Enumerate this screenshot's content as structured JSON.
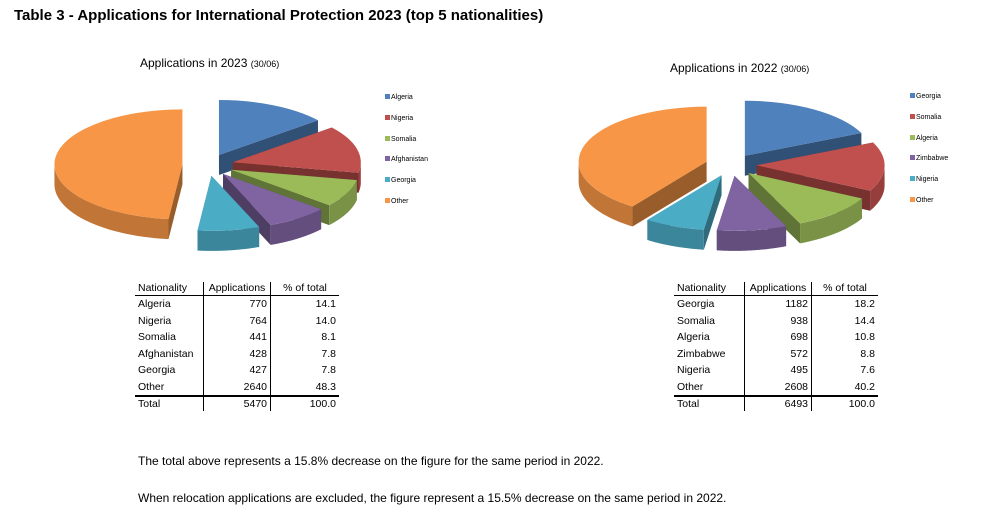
{
  "heading": "Table 3 - Applications for International Protection 2023 (top 5 nationalities)",
  "charts": [
    {
      "title": "Applications in 2023",
      "subtitle": "(30/06)",
      "legend": [
        {
          "label": "Algeria",
          "color": "#4f81bd"
        },
        {
          "label": "Nigeria",
          "color": "#c0504d"
        },
        {
          "label": "Somalia",
          "color": "#9bbb59"
        },
        {
          "label": "Afghanistan",
          "color": "#8064a2"
        },
        {
          "label": "Georgia",
          "color": "#4bacc6"
        },
        {
          "label": "Other",
          "color": "#f79646"
        }
      ],
      "table": {
        "headers": [
          "Nationality",
          "Applications",
          "% of total"
        ],
        "rows": [
          [
            "Algeria",
            "770",
            "14.1"
          ],
          [
            "Nigeria",
            "764",
            "14.0"
          ],
          [
            "Somalia",
            "441",
            "8.1"
          ],
          [
            "Afghanistan",
            "428",
            "7.8"
          ],
          [
            "Georgia",
            "427",
            "7.8"
          ],
          [
            "Other",
            "2640",
            "48.3"
          ]
        ],
        "total": [
          "Total",
          "5470",
          "100.0"
        ]
      }
    },
    {
      "title": "Applications in 2022",
      "subtitle": "(30/06)",
      "legend": [
        {
          "label": "Georgia",
          "color": "#4f81bd"
        },
        {
          "label": "Somalia",
          "color": "#c0504d"
        },
        {
          "label": "Algeria",
          "color": "#9bbb59"
        },
        {
          "label": "Zimbabwe",
          "color": "#8064a2"
        },
        {
          "label": "Nigeria",
          "color": "#4bacc6"
        },
        {
          "label": "Other",
          "color": "#f79646"
        }
      ],
      "table": {
        "headers": [
          "Nationality",
          "Applications",
          "% of total"
        ],
        "rows": [
          [
            "Georgia",
            "1182",
            "18.2"
          ],
          [
            "Somalia",
            "938",
            "14.4"
          ],
          [
            "Algeria",
            "698",
            "10.8"
          ],
          [
            "Zimbabwe",
            "572",
            "8.8"
          ],
          [
            "Nigeria",
            "495",
            "7.6"
          ],
          [
            "Other",
            "2608",
            "40.2"
          ]
        ],
        "total": [
          "Total",
          "6493",
          "100.0"
        ]
      }
    }
  ],
  "notes": [
    "The total above represents a 15.8% decrease on the figure for the same period in 2022.",
    "When relocation applications are excluded, the figure represent a 15.5% decrease on the same period in 2022."
  ],
  "chart_data": [
    {
      "type": "pie",
      "title": "Applications in 2023 (30/06)",
      "categories": [
        "Algeria",
        "Nigeria",
        "Somalia",
        "Afghanistan",
        "Georgia",
        "Other"
      ],
      "values": [
        770,
        764,
        441,
        428,
        427,
        2640
      ],
      "percentages": [
        14.1,
        14.0,
        8.1,
        7.8,
        7.8,
        48.3
      ],
      "total": 5470,
      "exploded": true,
      "legend_position": "right"
    },
    {
      "type": "pie",
      "title": "Applications in 2022 (30/06)",
      "categories": [
        "Georgia",
        "Somalia",
        "Algeria",
        "Zimbabwe",
        "Nigeria",
        "Other"
      ],
      "values": [
        1182,
        938,
        698,
        572,
        495,
        2608
      ],
      "percentages": [
        18.2,
        14.4,
        10.8,
        8.8,
        7.6,
        40.2
      ],
      "total": 6493,
      "exploded": true,
      "legend_position": "right"
    }
  ]
}
